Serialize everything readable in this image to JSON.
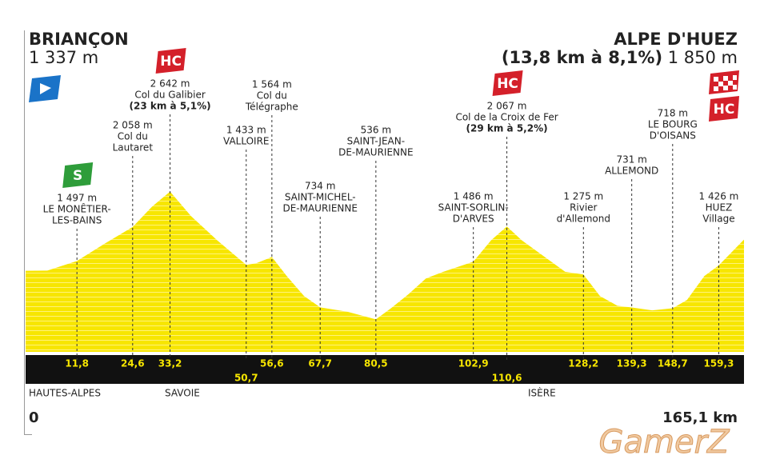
{
  "chart_data": {
    "type": "area",
    "start": {
      "name": "BRIANÇON",
      "elevation_label": "1 337 m"
    },
    "finish": {
      "name": "ALPE D'HUEZ",
      "climb": "(13,8 km à 8,1%)",
      "elevation_label": "1 850 m",
      "icon": "HC"
    },
    "x": [
      0,
      5,
      11.8,
      18,
      24.6,
      29,
      33.2,
      38,
      44,
      50.7,
      53,
      56.6,
      60,
      64,
      67.7,
      74,
      80.5,
      84,
      88,
      92,
      96,
      102.9,
      107,
      110.6,
      114,
      119,
      124,
      128.2,
      132,
      136,
      139.3,
      144,
      148.7,
      152,
      156,
      159.3,
      165.1
    ],
    "values": [
      1337,
      1340,
      1497,
      1776,
      2058,
      2390,
      2642,
      2240,
      1840,
      1433,
      1460,
      1564,
      1250,
      920,
      734,
      660,
      536,
      720,
      950,
      1210,
      1320,
      1486,
      1840,
      2067,
      1840,
      1580,
      1320,
      1275,
      920,
      760,
      731,
      684,
      718,
      855,
      1250,
      1426,
      1850
    ],
    "color": "#f7e600",
    "xlim": [
      0,
      165.1
    ],
    "ylim": [
      0,
      5800
    ],
    "xends": [
      {
        "value": 0,
        "label": "0"
      },
      {
        "value": 165.1,
        "label": "165,1 km"
      }
    ],
    "points": [
      {
        "km": 11.8,
        "km_label": "11,8",
        "elevation": 1497,
        "elevation_label": "1 497 m",
        "name": [
          "LE MONÊTIER-",
          "LES-BAINS"
        ],
        "icon": "S"
      },
      {
        "km": 24.6,
        "km_label": "24,6",
        "elevation": 2058,
        "elevation_label": "2 058 m",
        "name": [
          "Col du",
          "Lautaret"
        ]
      },
      {
        "km": 33.2,
        "km_label": "33,2",
        "elevation": 2642,
        "elevation_label": "2 642 m",
        "name": [
          "Col du Galibier"
        ],
        "climb": "(23 km à 5,1%)",
        "icon": "HC"
      },
      {
        "km": 50.7,
        "km_label": "50,7",
        "elevation": 1433,
        "elevation_label": "1 433 m",
        "name": [
          "VALLOIRE"
        ]
      },
      {
        "km": 56.6,
        "km_label": "56,6",
        "elevation": 1564,
        "elevation_label": "1 564 m",
        "name": [
          "Col du",
          "Télégraphe"
        ]
      },
      {
        "km": 67.7,
        "km_label": "67,7",
        "elevation": 734,
        "elevation_label": "734 m",
        "name": [
          "SAINT-MICHEL-",
          "DE-MAURIENNE"
        ]
      },
      {
        "km": 80.5,
        "km_label": "80,5",
        "elevation": 536,
        "elevation_label": "536 m",
        "name": [
          "SAINT-JEAN-",
          "DE-MAURIENNE"
        ]
      },
      {
        "km": 102.9,
        "km_label": "102,9",
        "elevation": 1486,
        "elevation_label": "1 486 m",
        "name": [
          "SAINT-SORLIN-",
          "D'ARVES"
        ]
      },
      {
        "km": 110.6,
        "km_label": "110,6",
        "elevation": 2067,
        "elevation_label": "2 067 m",
        "name": [
          "Col de la Croix de Fer"
        ],
        "climb": "(29 km à 5,2%)",
        "icon": "HC"
      },
      {
        "km": 128.2,
        "km_label": "128,2",
        "elevation": 1275,
        "elevation_label": "1 275 m",
        "name": [
          "Rivier",
          "d'Allemond"
        ]
      },
      {
        "km": 139.3,
        "km_label": "139,3",
        "elevation": 731,
        "elevation_label": "731 m",
        "name": [
          "ALLEMOND"
        ]
      },
      {
        "km": 148.7,
        "km_label": "148,7",
        "elevation": 718,
        "elevation_label": "718 m",
        "name": [
          "LE BOURG",
          "D'OISANS"
        ]
      },
      {
        "km": 159.3,
        "km_label": "159,3",
        "elevation": 1426,
        "elevation_label": "1 426 m",
        "name": [
          "HUEZ",
          "Village"
        ]
      }
    ],
    "regions": [
      "HAUTES-ALPES",
      "SAVOIE",
      "ISÈRE"
    ],
    "watermark": "GamerZ"
  }
}
